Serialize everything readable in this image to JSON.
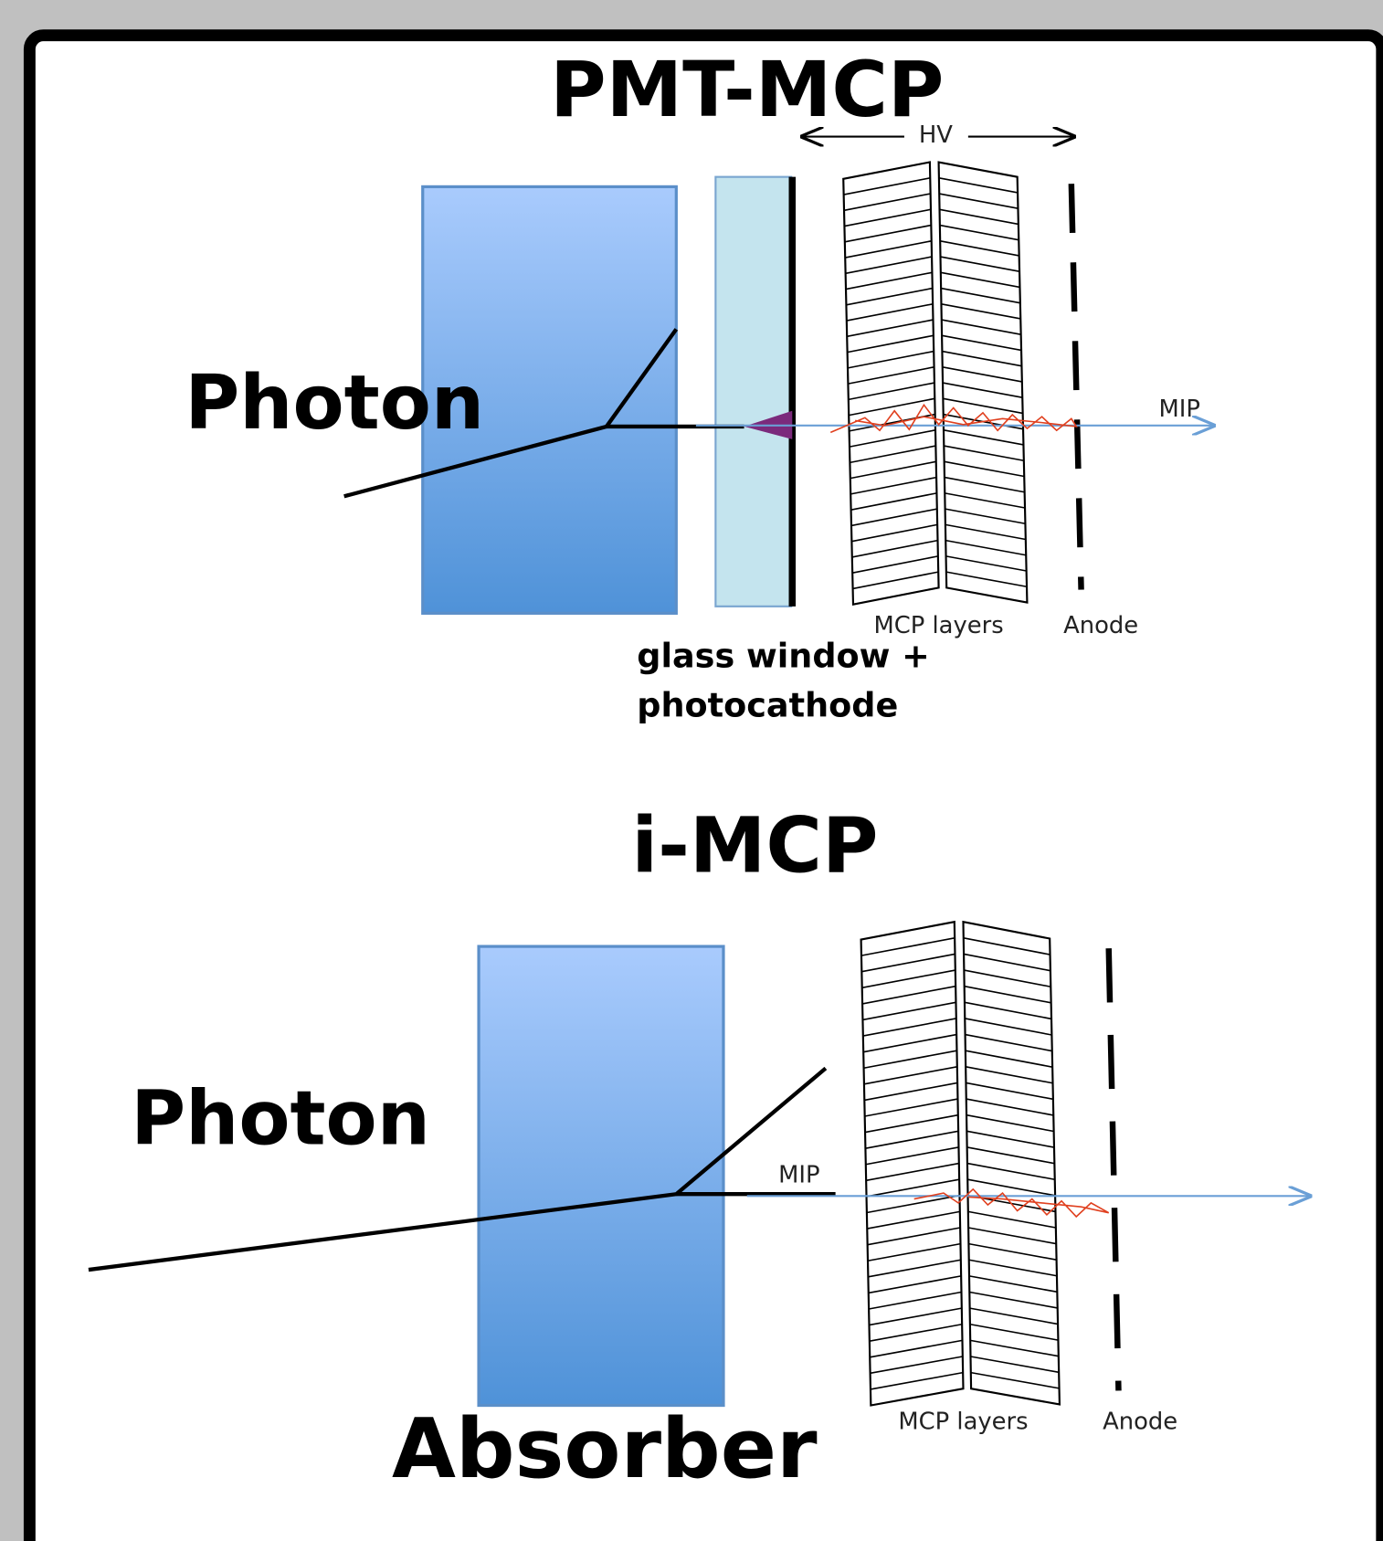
{
  "top": {
    "title": "PMT-MCP",
    "hv": "HV",
    "photon": "Photon",
    "mip": "MIP",
    "mcp_layers": "MCP layers",
    "anode": "Anode",
    "glass_window": [
      "glass window +",
      "photocathode"
    ]
  },
  "bottom": {
    "title": "i-MCP",
    "photon": "Photon",
    "mip": "MIP",
    "mcp_layers": "MCP layers",
    "anode": "Anode",
    "absorber": "Absorber"
  }
}
